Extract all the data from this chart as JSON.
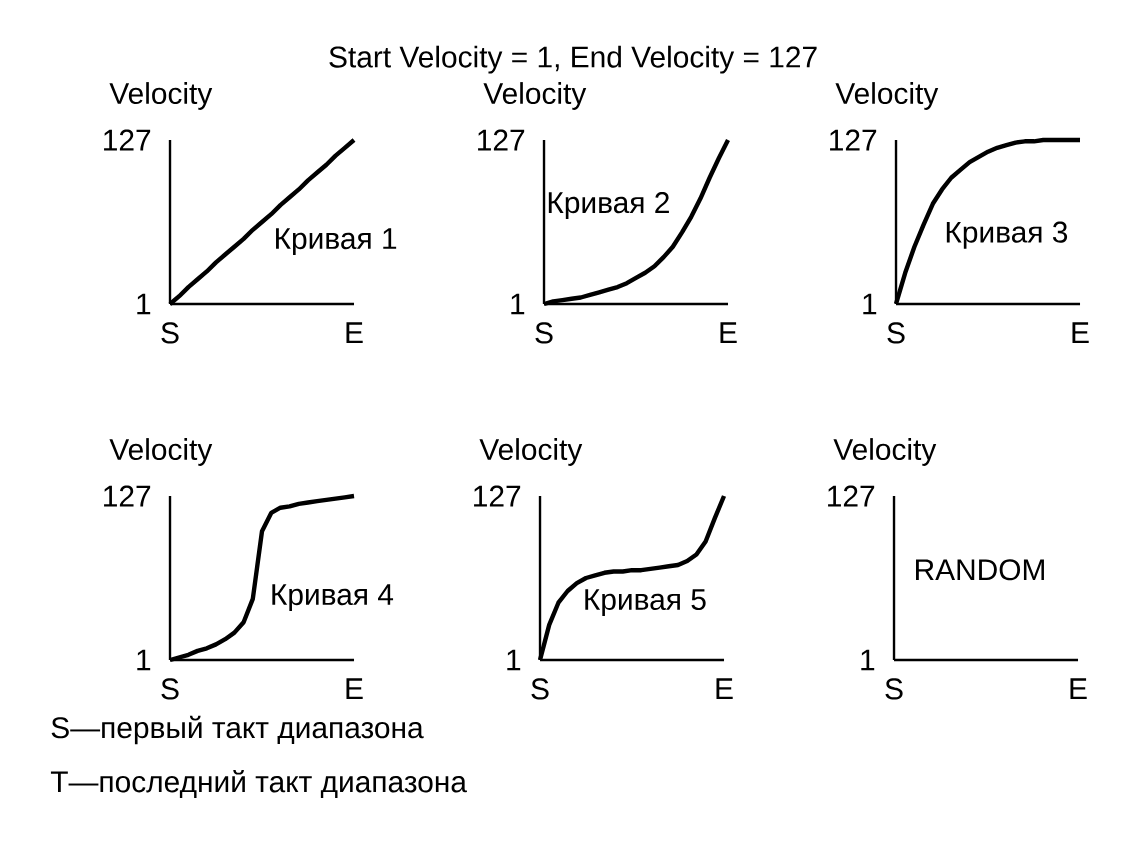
{
  "chart_data": [
    {
      "type": "line",
      "ylabel": "Velocity",
      "ylim": [
        1,
        127
      ],
      "yticks": [
        1,
        127
      ],
      "categories": [
        "S",
        null,
        null,
        null,
        null,
        null,
        null,
        null,
        null,
        null,
        null,
        null,
        null,
        null,
        null,
        null,
        null,
        null,
        null,
        null,
        "E"
      ],
      "series": [
        {
          "name": "Кривая 1",
          "color": "#000000",
          "values": [
            1,
            7,
            14,
            20,
            26,
            33,
            39,
            45,
            51,
            58,
            64,
            70,
            77,
            83,
            89,
            96,
            102,
            108,
            115,
            121,
            127
          ]
        }
      ]
    },
    {
      "type": "line",
      "title": "Start Velocity = 1, End Velocity = 127",
      "ylabel": "Velocity",
      "ylim": [
        1,
        127
      ],
      "yticks": [
        1,
        127
      ],
      "categories": [
        "S",
        null,
        null,
        null,
        null,
        null,
        null,
        null,
        null,
        null,
        null,
        null,
        null,
        null,
        null,
        null,
        null,
        null,
        null,
        null,
        "E"
      ],
      "series": [
        {
          "name": "Кривая 2",
          "color": "#000000",
          "values": [
            1,
            3,
            4,
            5,
            6,
            8,
            10,
            12,
            14,
            17,
            21,
            25,
            30,
            37,
            45,
            56,
            68,
            82,
            98,
            113,
            127
          ]
        }
      ]
    },
    {
      "type": "line",
      "ylabel": "Velocity",
      "ylim": [
        1,
        127
      ],
      "yticks": [
        1,
        127
      ],
      "categories": [
        "S",
        null,
        null,
        null,
        null,
        null,
        null,
        null,
        null,
        null,
        null,
        null,
        null,
        null,
        null,
        null,
        null,
        null,
        null,
        null,
        "E"
      ],
      "series": [
        {
          "name": "Кривая 3",
          "color": "#000000",
          "values": [
            1,
            25,
            45,
            62,
            78,
            89,
            98,
            104,
            110,
            114,
            118,
            121,
            123,
            125,
            126,
            126,
            127,
            127,
            127,
            127,
            127
          ]
        }
      ]
    },
    {
      "type": "line",
      "ylabel": "Velocity",
      "ylim": [
        1,
        127
      ],
      "yticks": [
        1,
        127
      ],
      "annotations": [
        "S—первый такт диапазона",
        "T—последний такт диапазона"
      ],
      "categories": [
        "S",
        null,
        null,
        null,
        null,
        null,
        null,
        null,
        null,
        null,
        null,
        null,
        null,
        null,
        null,
        null,
        null,
        null,
        null,
        null,
        "E"
      ],
      "series": [
        {
          "name": "Кривая 4",
          "color": "#000000",
          "values": [
            1,
            3,
            5,
            8,
            10,
            13,
            17,
            22,
            30,
            48,
            100,
            114,
            118,
            119,
            121,
            122,
            123,
            124,
            125,
            126,
            127
          ]
        }
      ]
    },
    {
      "type": "line",
      "ylabel": "Velocity",
      "ylim": [
        1,
        127
      ],
      "yticks": [
        1,
        127
      ],
      "categories": [
        "S",
        null,
        null,
        null,
        null,
        null,
        null,
        null,
        null,
        null,
        null,
        null,
        null,
        null,
        null,
        null,
        null,
        null,
        null,
        null,
        "E"
      ],
      "series": [
        {
          "name": "Кривая 5",
          "color": "#000000",
          "values": [
            1,
            28,
            45,
            54,
            60,
            64,
            66,
            68,
            69,
            69,
            70,
            70,
            71,
            72,
            73,
            74,
            77,
            82,
            92,
            110,
            127
          ]
        }
      ]
    },
    {
      "type": "line",
      "ylabel": "Velocity",
      "ylim": [
        1,
        127
      ],
      "yticks": [
        1,
        127
      ],
      "annotations": [
        "RANDOM"
      ],
      "categories": [
        "S",
        null,
        null,
        null,
        null,
        null,
        null,
        null,
        null,
        null,
        null,
        null,
        null,
        null,
        null,
        null,
        null,
        null,
        null,
        null,
        "E"
      ]
    }
  ]
}
